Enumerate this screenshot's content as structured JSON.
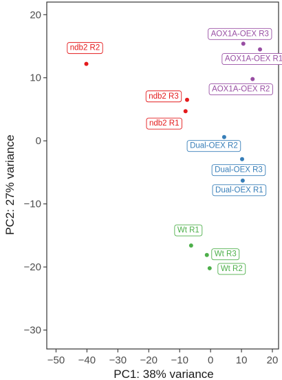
{
  "chart_data": {
    "type": "scatter",
    "title": "",
    "xlabel": "PC1: 38% variance",
    "ylabel": "PC2: 27% variance",
    "xlim": [
      -53,
      22
    ],
    "ylim": [
      -33,
      22
    ],
    "xticks": [
      -50,
      -40,
      -30,
      -20,
      -10,
      0,
      10,
      20
    ],
    "yticks": [
      20,
      10,
      0,
      -10,
      -20,
      -30
    ],
    "grid": false,
    "legend": "none",
    "series": [
      {
        "color": "#e41a1c",
        "points": [
          {
            "label": "ndb2 R2",
            "x": -40.2,
            "y": 12.2
          },
          {
            "label": "ndb2 R3",
            "x": -7.6,
            "y": 6.5
          },
          {
            "label": "ndb2 R1",
            "x": -8.1,
            "y": 4.7
          }
        ]
      },
      {
        "color": "#984ea3",
        "points": [
          {
            "label": "AOX1A-OEX R3",
            "x": 10.6,
            "y": 15.4
          },
          {
            "label": "AOX1A-OEX R1",
            "x": 16.0,
            "y": 14.5
          },
          {
            "label": "AOX1A-OEX R2",
            "x": 13.6,
            "y": 9.8
          }
        ]
      },
      {
        "color": "#377eb8",
        "points": [
          {
            "label": "Dual-OEX R2",
            "x": 4.4,
            "y": 0.6
          },
          {
            "label": "Dual-OEX R3",
            "x": 10.2,
            "y": -2.9
          },
          {
            "label": "Dual-OEX R1",
            "x": 10.4,
            "y": -6.3
          }
        ]
      },
      {
        "color": "#4daf4a",
        "points": [
          {
            "label": "Wt R1",
            "x": -6.3,
            "y": -16.6
          },
          {
            "label": "Wt R3",
            "x": -1.2,
            "y": -18.1
          },
          {
            "label": "Wt R2",
            "x": -0.3,
            "y": -20.2
          }
        ]
      }
    ]
  }
}
